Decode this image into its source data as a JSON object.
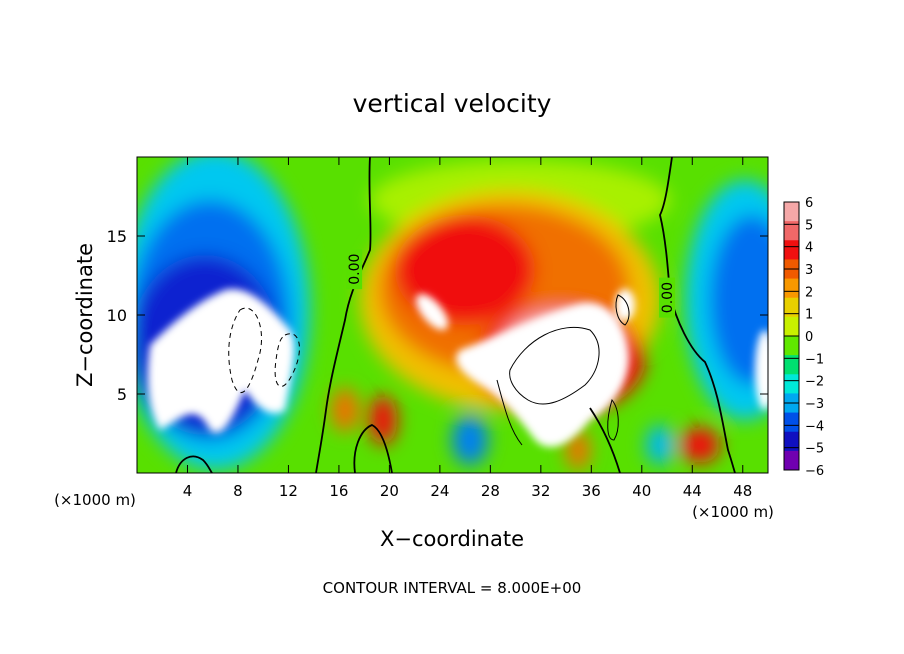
{
  "chart_data": {
    "type": "heatmap",
    "title": "vertical velocity",
    "xlabel": "X−coordinate",
    "ylabel": "Z−coordinate",
    "x_unit_left": "(×1000 m)",
    "x_unit_right": "(×1000 m)",
    "footnote": "CONTOUR INTERVAL = 8.000E+00",
    "xlim": [
      0,
      50
    ],
    "ylim": [
      0,
      20
    ],
    "x_ticks": [
      4,
      8,
      12,
      16,
      20,
      24,
      28,
      32,
      36,
      40,
      44,
      48
    ],
    "y_ticks": [
      5,
      10,
      15
    ],
    "contour_labels": [
      {
        "text": "0.00",
        "x": 17.2,
        "y": 12.9
      },
      {
        "text": "0.00",
        "x": 42.0,
        "y": 11.1
      }
    ],
    "colorbar": {
      "min": -6,
      "max": 6,
      "ticks": [
        "6",
        "5",
        "4",
        "3",
        "2",
        "1",
        "0",
        "−1",
        "−2",
        "−3",
        "−4",
        "−5",
        "−6"
      ],
      "colors": [
        "#f5a8a8",
        "#f06868",
        "#f01010",
        "#f05a00",
        "#f89800",
        "#e8d000",
        "#c8f000",
        "#60e800",
        "#00e070",
        "#00e8d8",
        "#00a8f0",
        "#0050e8",
        "#1010c0",
        "#7000b0"
      ]
    }
  }
}
